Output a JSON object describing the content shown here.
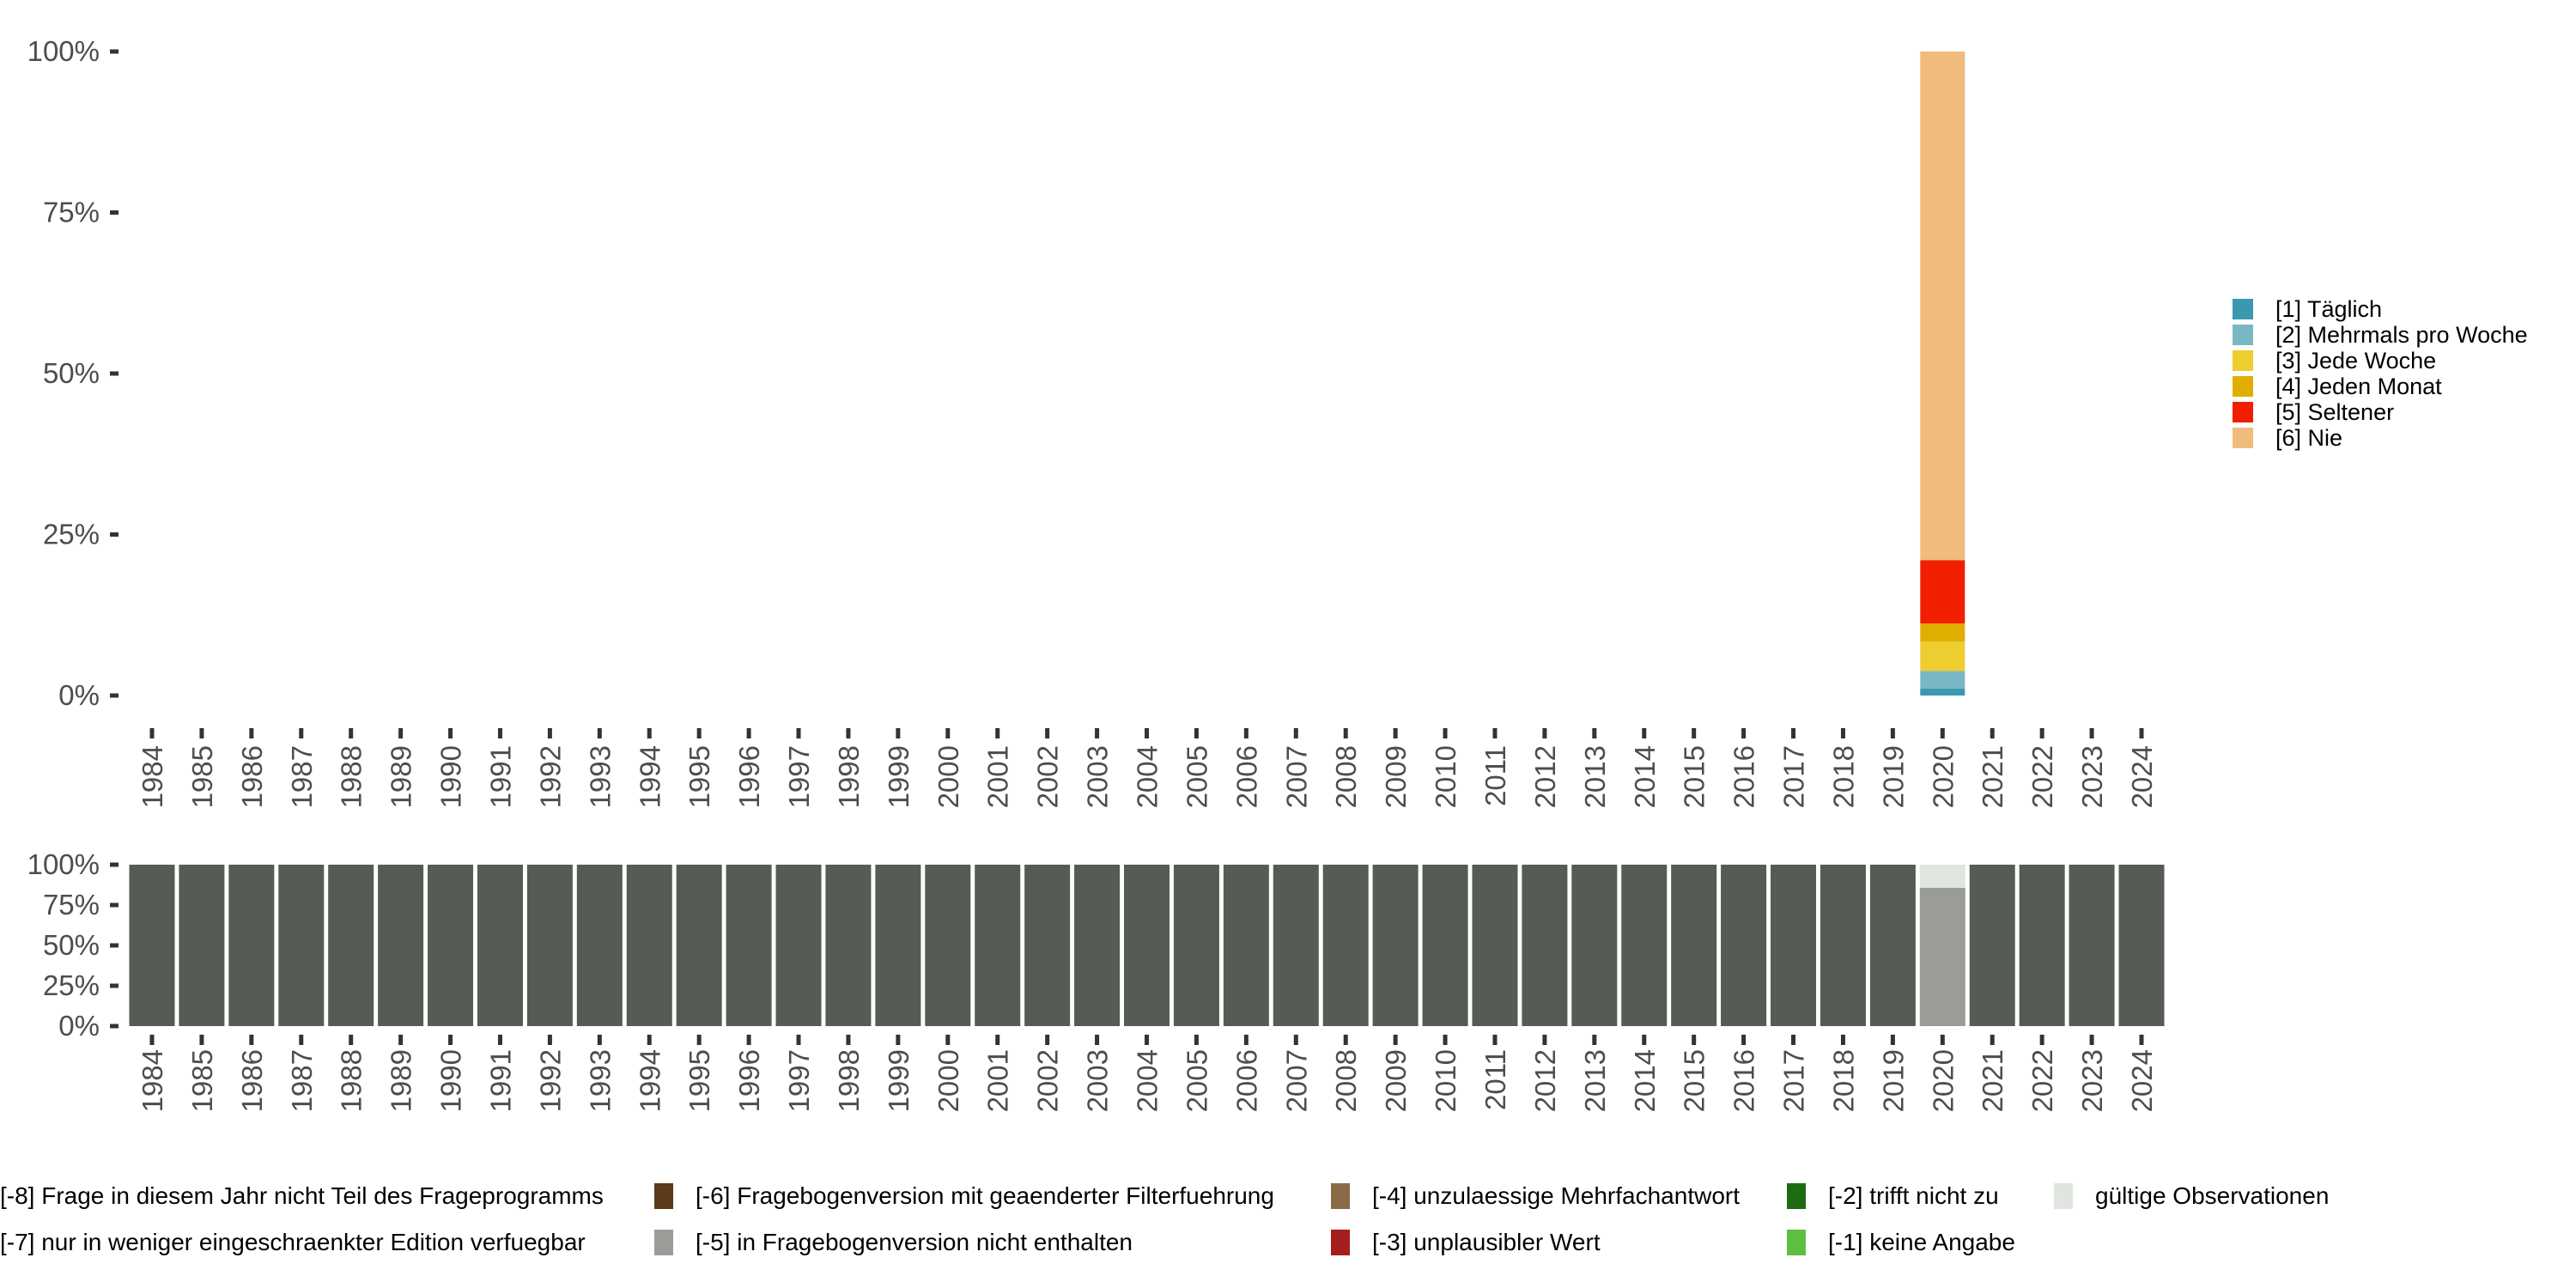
{
  "chart_data": [
    {
      "type": "bar",
      "stacked": true,
      "categories": [
        "1984",
        "1985",
        "1986",
        "1987",
        "1988",
        "1989",
        "1990",
        "1991",
        "1992",
        "1993",
        "1994",
        "1995",
        "1996",
        "1997",
        "1998",
        "1999",
        "2000",
        "2001",
        "2002",
        "2003",
        "2004",
        "2005",
        "2006",
        "2007",
        "2008",
        "2009",
        "2010",
        "2011",
        "2012",
        "2013",
        "2014",
        "2015",
        "2016",
        "2017",
        "2018",
        "2019",
        "2020",
        "2021",
        "2022",
        "2023",
        "2024"
      ],
      "ylim": [
        0,
        100
      ],
      "yticks": [
        "0%",
        "25%",
        "50%",
        "75%",
        "100%"
      ],
      "ytick_values": [
        0,
        25,
        50,
        75,
        100
      ],
      "legend_position": "right",
      "series": [
        {
          "name": "[1] Täglich",
          "color": "#3a98b0",
          "values": {
            "2020": 1.1
          }
        },
        {
          "name": "[2] Mehrmals pro Woche",
          "color": "#7ab7c5",
          "values": {
            "2020": 2.7
          }
        },
        {
          "name": "[3] Jede Woche",
          "color": "#edcd2f",
          "values": {
            "2020": 4.6
          }
        },
        {
          "name": "[4] Jeden Monat",
          "color": "#e0ae00",
          "values": {
            "2020": 2.8
          }
        },
        {
          "name": "[5] Seltener",
          "color": "#f21e00",
          "values": {
            "2020": 9.8
          }
        },
        {
          "name": "[6] Nie",
          "color": "#f0bb7d",
          "values": {
            "2020": 79.0
          }
        }
      ]
    },
    {
      "type": "bar",
      "stacked": true,
      "categories": [
        "1984",
        "1985",
        "1986",
        "1987",
        "1988",
        "1989",
        "1990",
        "1991",
        "1992",
        "1993",
        "1994",
        "1995",
        "1996",
        "1997",
        "1998",
        "1999",
        "2000",
        "2001",
        "2002",
        "2003",
        "2004",
        "2005",
        "2006",
        "2007",
        "2008",
        "2009",
        "2010",
        "2011",
        "2012",
        "2013",
        "2014",
        "2015",
        "2016",
        "2017",
        "2018",
        "2019",
        "2020",
        "2021",
        "2022",
        "2023",
        "2024"
      ],
      "ylim": [
        0,
        100
      ],
      "yticks": [
        "0%",
        "25%",
        "50%",
        "75%",
        "100%"
      ],
      "ytick_values": [
        0,
        25,
        50,
        75,
        100
      ],
      "legend_position": "bottom",
      "series": [
        {
          "name": "[-8] Frage in diesem Jahr nicht Teil des Frageprogramms",
          "color": "#555b55",
          "default": 100,
          "values": {
            "2020": 0
          }
        },
        {
          "name": "[-7] nur in weniger eingeschraenkter Edition verfuegbar",
          "color": "#8a8f88",
          "values": {}
        },
        {
          "name": "[-6] Fragebogenversion mit geaenderter Filterfuehrung",
          "color": "#5a3a1a",
          "values": {}
        },
        {
          "name": "[-5] in Fragebogenversion nicht enthalten",
          "color": "#9a9d97",
          "values": {
            "2020": 85.7
          }
        },
        {
          "name": "[-4] unzulaessige Mehrfachantwort",
          "color": "#8b6a48",
          "values": {}
        },
        {
          "name": "[-3] unplausibler Wert",
          "color": "#a51d1d",
          "values": {}
        },
        {
          "name": "[-2] trifft nicht zu",
          "color": "#1e6b14",
          "values": {}
        },
        {
          "name": "[-1] keine Angabe",
          "color": "#5cbf3f",
          "values": {}
        },
        {
          "name": "gültige Observationen",
          "color": "#e0e5e0",
          "values": {
            "2020": 14.3
          }
        }
      ]
    }
  ]
}
